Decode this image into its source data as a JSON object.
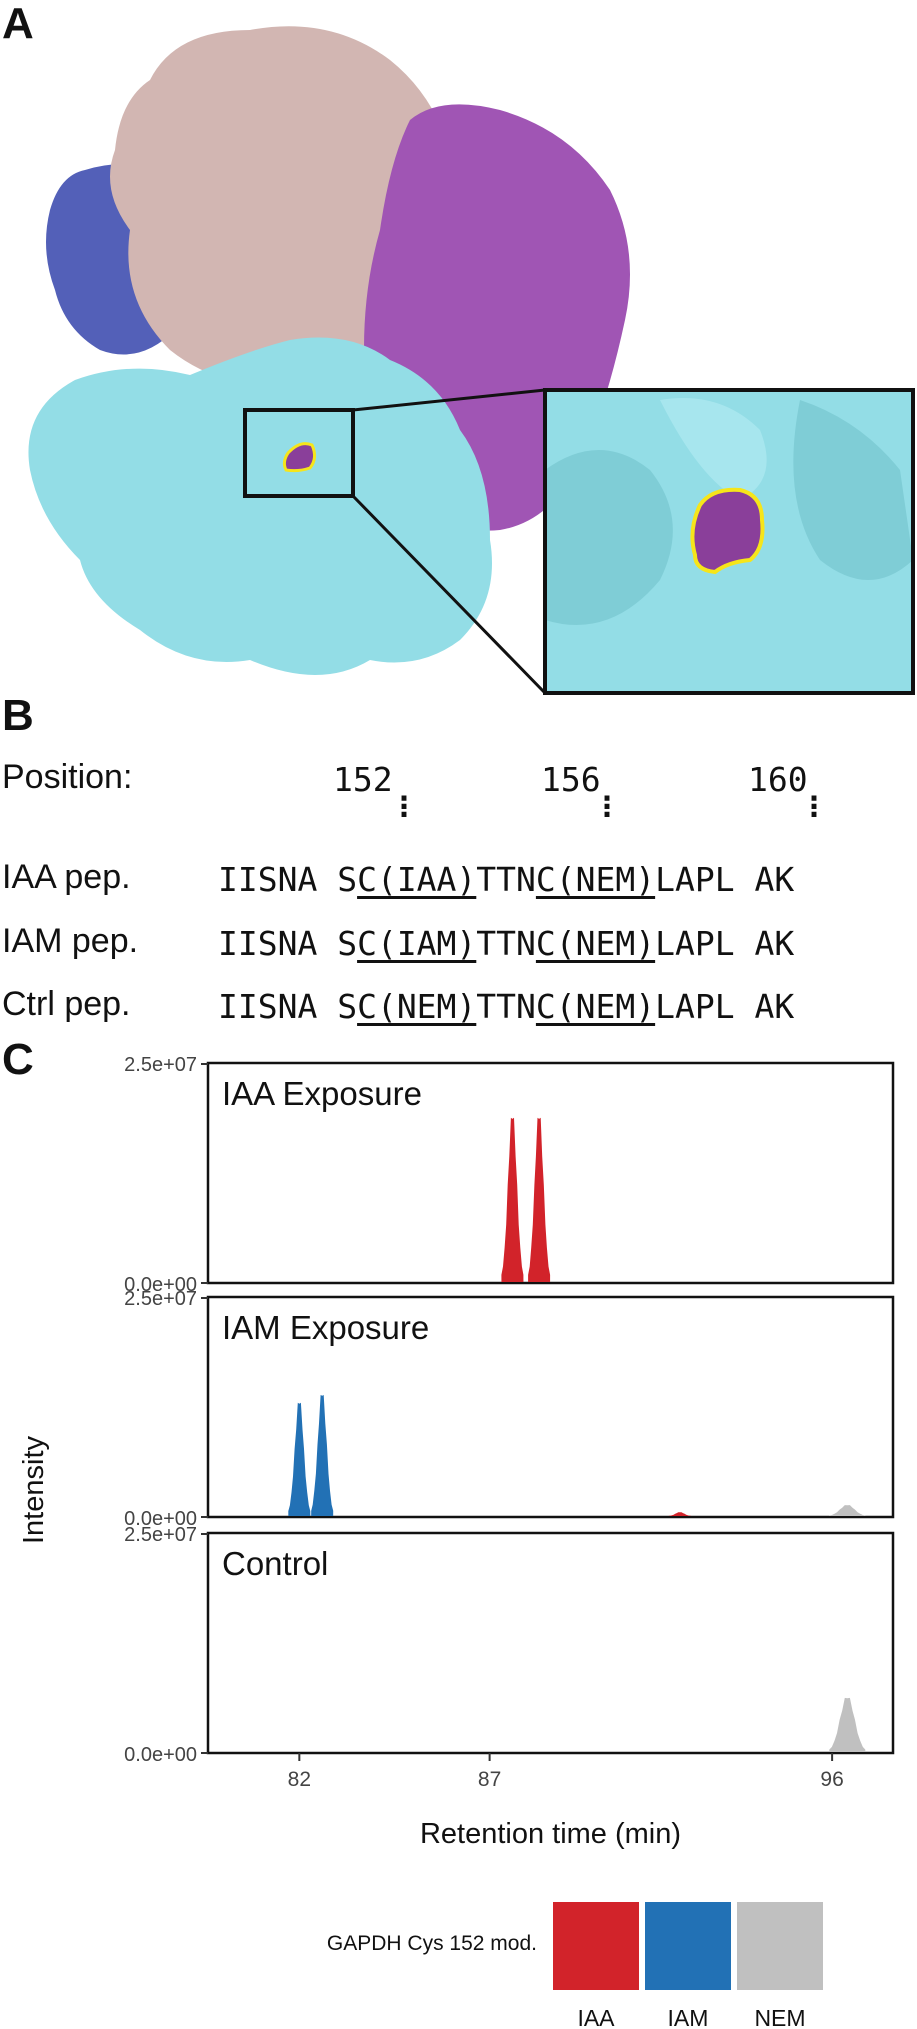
{
  "panels": {
    "a": "A",
    "b": "B",
    "c": "C"
  },
  "sequence": {
    "position_label": "Position:",
    "positions": [
      "152",
      "156",
      "160"
    ],
    "rows": [
      {
        "label": "IAA pep.",
        "pre": "IISNA S",
        "mod1": "C(IAA)",
        "mid": "TTN",
        "mod2": "C(NEM)",
        "post": "LAPL AK"
      },
      {
        "label": "IAM pep.",
        "pre": "IISNA S",
        "mod1": "C(IAM)",
        "mid": "TTN",
        "mod2": "C(NEM)",
        "post": "LAPL AK"
      },
      {
        "label": "Ctrl pep.",
        "pre": "IISNA S",
        "mod1": "C(NEM)",
        "mid": "TTN",
        "mod2": "C(NEM)",
        "post": "LAPL AK"
      }
    ]
  },
  "chart_data": {
    "type": "area",
    "xlabel": "Retention time (min)",
    "ylabel": "Intensity",
    "x_ticks": [
      "82",
      "87",
      "96"
    ],
    "y_ticks": [
      "0.0e+00",
      "2.5e+07"
    ],
    "ylim": [
      0,
      25000000
    ],
    "facets": [
      {
        "title": "IAA Exposure",
        "peaks": [
          {
            "series": "IAA",
            "rt": 87.6,
            "height": 21000000
          },
          {
            "series": "IAA",
            "rt": 88.3,
            "height": 21000000
          }
        ]
      },
      {
        "title": "IAM Exposure",
        "peaks": [
          {
            "series": "IAM",
            "rt": 82.0,
            "height": 14500000
          },
          {
            "series": "IAM",
            "rt": 82.6,
            "height": 15500000
          },
          {
            "series": "IAA",
            "rt": 92.0,
            "height": 600000
          },
          {
            "series": "NEM",
            "rt": 96.4,
            "height": 1500000
          }
        ]
      },
      {
        "title": "Control",
        "peaks": [
          {
            "series": "NEM",
            "rt": 96.4,
            "height": 7000000
          }
        ]
      }
    ],
    "legend": {
      "title": "GAPDH Cys 152 mod.",
      "position": "bottom",
      "items": [
        {
          "label": "IAA",
          "color": "#d2232a"
        },
        {
          "label": "IAM",
          "color": "#2271b5"
        },
        {
          "label": "NEM",
          "color": "#c0c0c0"
        }
      ]
    }
  },
  "colors": {
    "subunit_cyan": "#93dde6",
    "subunit_pink": "#d2b6b2",
    "subunit_purple": "#a055b4",
    "subunit_blue": "#5360b8",
    "highlight": "#8a3f9a",
    "outline_yellow": "#f6e51a"
  }
}
